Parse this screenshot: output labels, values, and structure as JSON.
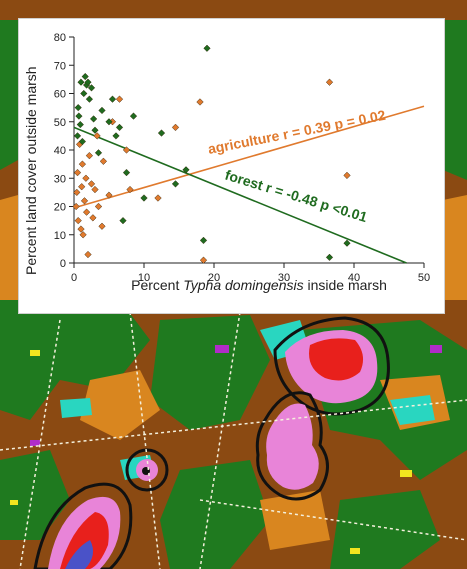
{
  "chart_data": {
    "type": "scatter",
    "xlabel_prefix": "Percent ",
    "xlabel_italic": "Typha domingensis",
    "xlabel_suffix": " inside marsh",
    "ylabel": "Percent land cover outside marsh",
    "xlim": [
      0,
      50
    ],
    "ylim": [
      0,
      80
    ],
    "xticks": [
      0,
      10,
      20,
      30,
      40,
      50
    ],
    "yticks": [
      0,
      10,
      20,
      30,
      40,
      50,
      60,
      70,
      80
    ],
    "grid": false,
    "series": [
      {
        "name": "agriculture",
        "color": "#e07a2e",
        "points": [
          [
            0.3,
            20
          ],
          [
            0.4,
            25
          ],
          [
            0.5,
            32
          ],
          [
            0.6,
            15
          ],
          [
            0.8,
            42
          ],
          [
            1.0,
            12
          ],
          [
            1.1,
            27
          ],
          [
            1.2,
            35
          ],
          [
            1.3,
            10
          ],
          [
            1.5,
            22
          ],
          [
            1.7,
            30
          ],
          [
            1.8,
            18
          ],
          [
            2.0,
            3
          ],
          [
            2.2,
            38
          ],
          [
            2.5,
            28
          ],
          [
            2.7,
            16
          ],
          [
            3.0,
            26
          ],
          [
            3.3,
            45
          ],
          [
            3.5,
            20
          ],
          [
            4.0,
            13
          ],
          [
            4.2,
            36
          ],
          [
            5.0,
            24
          ],
          [
            5.5,
            50
          ],
          [
            6.5,
            58
          ],
          [
            7.5,
            40
          ],
          [
            8.0,
            26
          ],
          [
            12.0,
            23
          ],
          [
            14.5,
            48
          ],
          [
            18.0,
            57
          ],
          [
            18.5,
            1
          ],
          [
            36.5,
            64
          ],
          [
            39.0,
            31
          ]
        ],
        "fit": {
          "x": [
            0,
            50
          ],
          "y": [
            19.5,
            55.5
          ]
        },
        "annotation": "agriculture   r = 0.39  p = 0.02"
      },
      {
        "name": "forest",
        "color": "#1f6b1f",
        "points": [
          [
            0.5,
            45
          ],
          [
            0.6,
            55
          ],
          [
            0.7,
            52
          ],
          [
            0.9,
            49
          ],
          [
            1.0,
            64
          ],
          [
            1.2,
            43
          ],
          [
            1.4,
            60
          ],
          [
            1.6,
            66
          ],
          [
            1.8,
            63
          ],
          [
            2.0,
            64
          ],
          [
            2.2,
            58
          ],
          [
            2.5,
            62
          ],
          [
            2.8,
            51
          ],
          [
            3.0,
            47
          ],
          [
            3.5,
            39
          ],
          [
            4.0,
            54
          ],
          [
            5.0,
            50
          ],
          [
            5.5,
            58
          ],
          [
            6.0,
            45
          ],
          [
            6.5,
            48
          ],
          [
            7.0,
            15
          ],
          [
            7.5,
            32
          ],
          [
            8.5,
            52
          ],
          [
            10.0,
            23
          ],
          [
            12.5,
            46
          ],
          [
            14.5,
            28
          ],
          [
            16.0,
            33
          ],
          [
            18.5,
            8
          ],
          [
            19.0,
            76
          ],
          [
            36.5,
            2
          ],
          [
            39.0,
            7
          ]
        ],
        "fit": {
          "x": [
            0,
            47.5
          ],
          "y": [
            48,
            0
          ]
        },
        "annotation": "forest   r = -0.48  p <0.01"
      }
    ]
  }
}
